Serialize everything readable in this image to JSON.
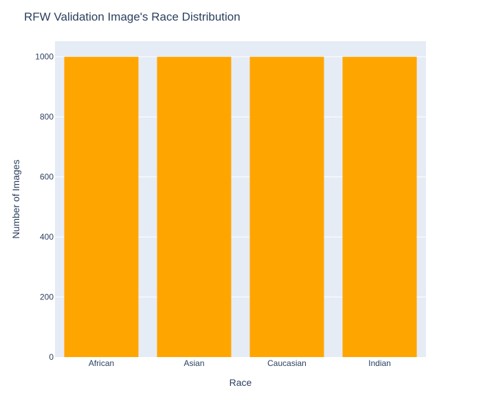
{
  "chart_data": {
    "type": "bar",
    "title": "RFW Validation Image's Race Distribution",
    "xlabel": "Race",
    "ylabel": "Number of Images",
    "categories": [
      "African",
      "Asian",
      "Caucasian",
      "Indian"
    ],
    "values": [
      1000,
      1000,
      1000,
      1000
    ],
    "ylim": [
      0,
      1052
    ],
    "yticks": [
      0,
      200,
      400,
      600,
      800,
      1000
    ],
    "grid": true,
    "colors": {
      "bar": "#FFA500",
      "plot_background": "#E5ECF6",
      "gridline": "#ffffff",
      "text": "#2a3f5f"
    }
  }
}
